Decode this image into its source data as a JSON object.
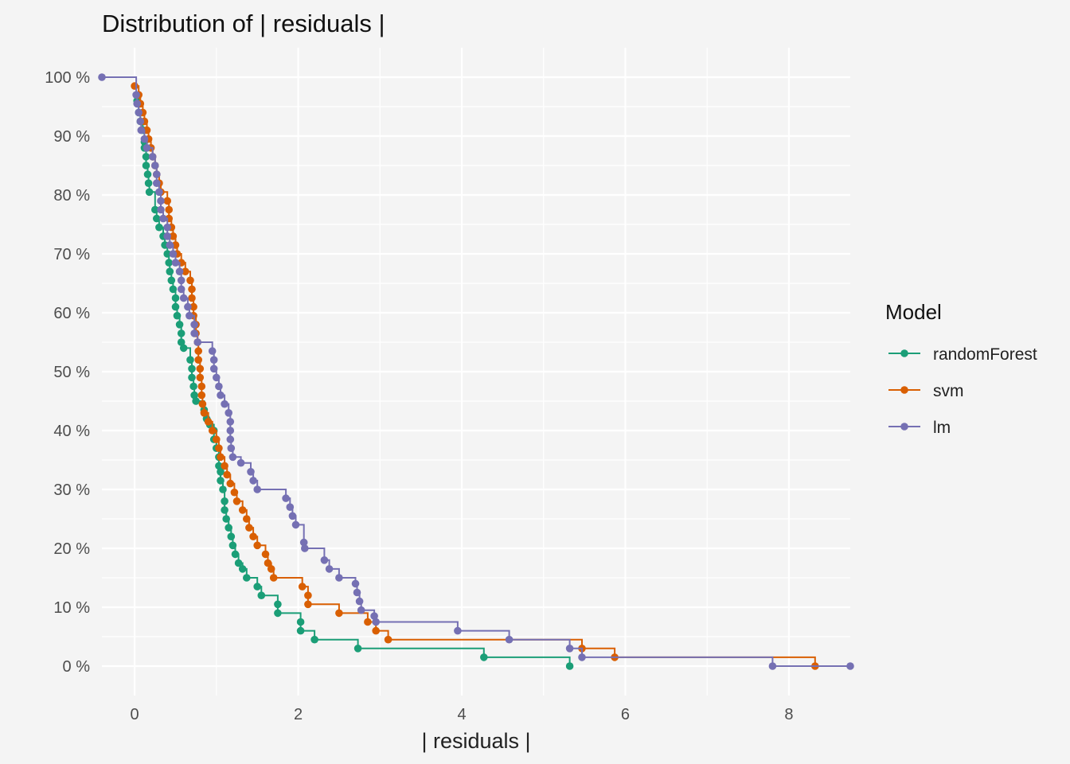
{
  "chart_data": {
    "type": "line",
    "title": "Distribution of | residuals |",
    "xlabel": "| residuals |",
    "ylabel": "",
    "xlim": [
      -0.4,
      8.75
    ],
    "ylim": [
      -5,
      105
    ],
    "x_ticks": [
      0,
      2,
      4,
      6,
      8
    ],
    "y_ticks": [
      0,
      10,
      20,
      30,
      40,
      50,
      60,
      70,
      80,
      90,
      100
    ],
    "y_tick_labels": [
      "0 %",
      "10 %",
      "20 %",
      "30 %",
      "40 %",
      "50 %",
      "60 %",
      "70 %",
      "80 %",
      "90 %",
      "100 %"
    ],
    "grid": true,
    "legend": {
      "title": "Model",
      "position": "right"
    },
    "series": [
      {
        "name": "randomForest",
        "color": "#1b9e77",
        "points": [
          [
            0.03,
            96
          ],
          [
            0.05,
            94
          ],
          [
            0.07,
            92.5
          ],
          [
            0.1,
            91
          ],
          [
            0.12,
            89
          ],
          [
            0.12,
            88
          ],
          [
            0.14,
            86.5
          ],
          [
            0.14,
            85
          ],
          [
            0.16,
            83.5
          ],
          [
            0.17,
            82
          ],
          [
            0.18,
            80.5
          ],
          [
            0.25,
            77.5
          ],
          [
            0.27,
            76
          ],
          [
            0.3,
            74.5
          ],
          [
            0.35,
            73
          ],
          [
            0.37,
            71.5
          ],
          [
            0.4,
            70
          ],
          [
            0.42,
            68.5
          ],
          [
            0.43,
            67
          ],
          [
            0.45,
            65.5
          ],
          [
            0.47,
            64
          ],
          [
            0.5,
            62.5
          ],
          [
            0.5,
            61
          ],
          [
            0.52,
            59.5
          ],
          [
            0.55,
            58
          ],
          [
            0.57,
            56.5
          ],
          [
            0.57,
            55
          ],
          [
            0.6,
            54
          ],
          [
            0.68,
            52
          ],
          [
            0.7,
            50.5
          ],
          [
            0.7,
            49
          ],
          [
            0.72,
            47.5
          ],
          [
            0.73,
            46
          ],
          [
            0.75,
            45
          ],
          [
            0.85,
            43.5
          ],
          [
            0.88,
            42
          ],
          [
            0.92,
            41
          ],
          [
            0.97,
            40
          ],
          [
            0.97,
            38.5
          ],
          [
            1.0,
            37
          ],
          [
            1.03,
            35.5
          ],
          [
            1.03,
            34
          ],
          [
            1.05,
            33
          ],
          [
            1.05,
            31.5
          ],
          [
            1.08,
            30
          ],
          [
            1.1,
            28
          ],
          [
            1.1,
            26.5
          ],
          [
            1.12,
            25
          ],
          [
            1.15,
            23.5
          ],
          [
            1.18,
            22
          ],
          [
            1.2,
            20.5
          ],
          [
            1.23,
            19
          ],
          [
            1.27,
            17.5
          ],
          [
            1.32,
            16.5
          ],
          [
            1.37,
            15
          ],
          [
            1.5,
            13.5
          ],
          [
            1.55,
            12
          ],
          [
            1.75,
            10.5
          ],
          [
            1.75,
            9
          ],
          [
            2.03,
            7.5
          ],
          [
            2.03,
            6
          ],
          [
            2.2,
            4.5
          ],
          [
            2.73,
            3
          ],
          [
            4.27,
            1.5
          ],
          [
            5.32,
            0
          ]
        ]
      },
      {
        "name": "svm",
        "color": "#d95f02",
        "points": [
          [
            0.0,
            98.5
          ],
          [
            0.05,
            97
          ],
          [
            0.07,
            95.5
          ],
          [
            0.1,
            94
          ],
          [
            0.12,
            92.5
          ],
          [
            0.15,
            91
          ],
          [
            0.17,
            89.5
          ],
          [
            0.2,
            88
          ],
          [
            0.22,
            86.5
          ],
          [
            0.25,
            85
          ],
          [
            0.27,
            83.5
          ],
          [
            0.3,
            82
          ],
          [
            0.32,
            80.5
          ],
          [
            0.4,
            79
          ],
          [
            0.42,
            77.5
          ],
          [
            0.42,
            76
          ],
          [
            0.45,
            74.5
          ],
          [
            0.47,
            73
          ],
          [
            0.5,
            71.5
          ],
          [
            0.52,
            70
          ],
          [
            0.57,
            68.5
          ],
          [
            0.62,
            67
          ],
          [
            0.68,
            65.5
          ],
          [
            0.7,
            64
          ],
          [
            0.7,
            62.5
          ],
          [
            0.72,
            61
          ],
          [
            0.72,
            59.5
          ],
          [
            0.75,
            58
          ],
          [
            0.75,
            56.5
          ],
          [
            0.77,
            55
          ],
          [
            0.78,
            53.5
          ],
          [
            0.78,
            52
          ],
          [
            0.8,
            50.5
          ],
          [
            0.8,
            49
          ],
          [
            0.82,
            47.5
          ],
          [
            0.82,
            46
          ],
          [
            0.83,
            44.5
          ],
          [
            0.85,
            43
          ],
          [
            0.9,
            41.5
          ],
          [
            0.95,
            40
          ],
          [
            1.0,
            38.5
          ],
          [
            1.03,
            37
          ],
          [
            1.05,
            35.5
          ],
          [
            1.1,
            34
          ],
          [
            1.13,
            32.5
          ],
          [
            1.17,
            31
          ],
          [
            1.22,
            29.5
          ],
          [
            1.25,
            28
          ],
          [
            1.32,
            26.5
          ],
          [
            1.37,
            25
          ],
          [
            1.4,
            23.5
          ],
          [
            1.45,
            22
          ],
          [
            1.5,
            20.5
          ],
          [
            1.6,
            19
          ],
          [
            1.63,
            17.5
          ],
          [
            1.67,
            16.5
          ],
          [
            1.7,
            15
          ],
          [
            2.05,
            13.5
          ],
          [
            2.12,
            12
          ],
          [
            2.12,
            10.5
          ],
          [
            2.5,
            9
          ],
          [
            2.85,
            7.5
          ],
          [
            2.95,
            6
          ],
          [
            3.1,
            4.5
          ],
          [
            5.47,
            3
          ],
          [
            5.87,
            1.5
          ],
          [
            8.32,
            0
          ]
        ]
      },
      {
        "name": "lm",
        "color": "#7570b3",
        "points": [
          [
            -0.4,
            100
          ],
          [
            0.02,
            97
          ],
          [
            0.03,
            95.5
          ],
          [
            0.05,
            94
          ],
          [
            0.07,
            92.5
          ],
          [
            0.08,
            91
          ],
          [
            0.12,
            89.5
          ],
          [
            0.15,
            88
          ],
          [
            0.22,
            86.5
          ],
          [
            0.25,
            85
          ],
          [
            0.27,
            83.5
          ],
          [
            0.27,
            82
          ],
          [
            0.3,
            80.5
          ],
          [
            0.32,
            79
          ],
          [
            0.32,
            77.5
          ],
          [
            0.35,
            76
          ],
          [
            0.4,
            74.5
          ],
          [
            0.4,
            73
          ],
          [
            0.43,
            71.5
          ],
          [
            0.47,
            70
          ],
          [
            0.5,
            68.5
          ],
          [
            0.55,
            67
          ],
          [
            0.57,
            65.5
          ],
          [
            0.57,
            64
          ],
          [
            0.6,
            62.5
          ],
          [
            0.65,
            61
          ],
          [
            0.67,
            59.5
          ],
          [
            0.73,
            58
          ],
          [
            0.73,
            56.5
          ],
          [
            0.77,
            55
          ],
          [
            0.95,
            53.5
          ],
          [
            0.97,
            52
          ],
          [
            0.97,
            50.5
          ],
          [
            1.0,
            49
          ],
          [
            1.03,
            47.5
          ],
          [
            1.05,
            46
          ],
          [
            1.1,
            44.5
          ],
          [
            1.15,
            43
          ],
          [
            1.17,
            41.5
          ],
          [
            1.17,
            40
          ],
          [
            1.17,
            38.5
          ],
          [
            1.18,
            37
          ],
          [
            1.2,
            35.5
          ],
          [
            1.3,
            34.5
          ],
          [
            1.42,
            33
          ],
          [
            1.45,
            31.5
          ],
          [
            1.5,
            30
          ],
          [
            1.85,
            28.5
          ],
          [
            1.9,
            27
          ],
          [
            1.93,
            25.5
          ],
          [
            1.97,
            24
          ],
          [
            2.07,
            21
          ],
          [
            2.08,
            20
          ],
          [
            2.32,
            18
          ],
          [
            2.38,
            16.5
          ],
          [
            2.5,
            15
          ],
          [
            2.7,
            14
          ],
          [
            2.72,
            12.5
          ],
          [
            2.75,
            11
          ],
          [
            2.77,
            9.5
          ],
          [
            2.93,
            8.5
          ],
          [
            2.95,
            7.5
          ],
          [
            3.95,
            6
          ],
          [
            4.58,
            4.5
          ],
          [
            5.32,
            3
          ],
          [
            5.47,
            1.5
          ],
          [
            7.8,
            0
          ],
          [
            8.75,
            0
          ]
        ]
      }
    ]
  }
}
